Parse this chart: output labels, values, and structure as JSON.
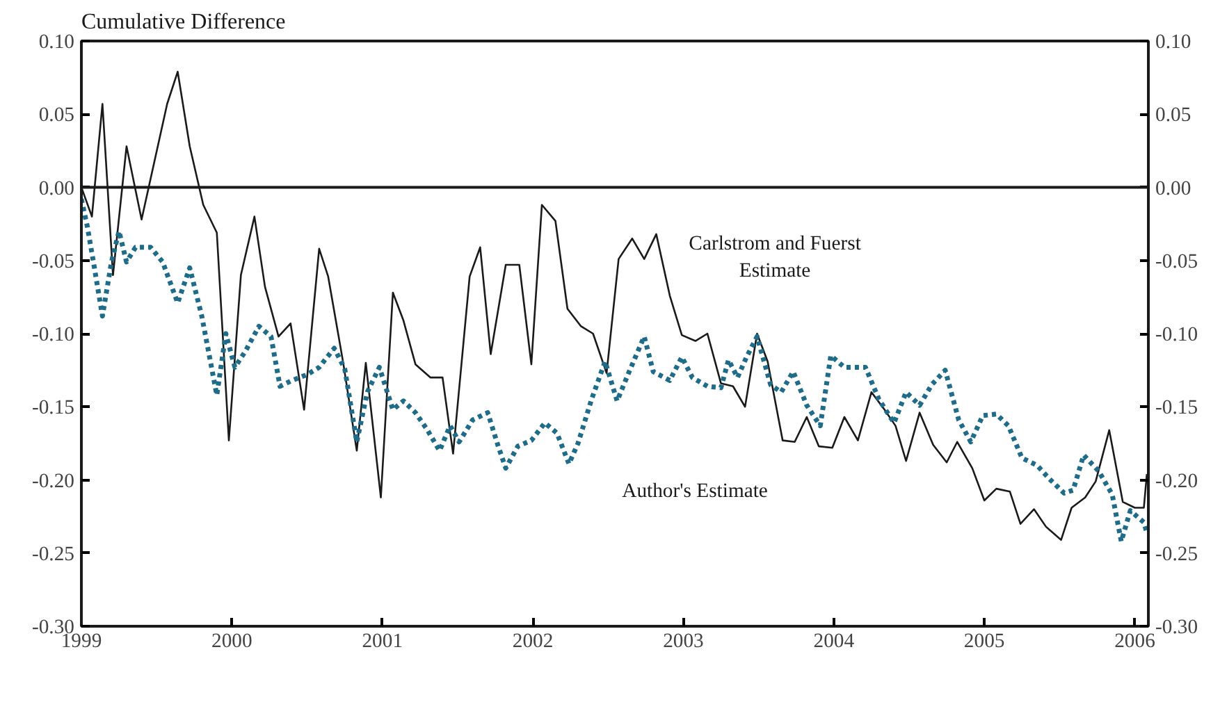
{
  "chart_data": {
    "type": "line",
    "ylabel": "Cumulative Difference",
    "xlim": [
      1999,
      2006.09
    ],
    "xticks": [
      1999,
      2000,
      2001,
      2002,
      2003,
      2004,
      2005,
      2006
    ],
    "ylim": [
      -0.3,
      0.1
    ],
    "yticks": [
      {
        "value": 0.1,
        "label": "0.10"
      },
      {
        "value": 0.05,
        "label": "0.05"
      },
      {
        "value": 0,
        "label": "0.00"
      },
      {
        "value": -0.05,
        "label": "-0.05"
      },
      {
        "value": -0.1,
        "label": "-0.10"
      },
      {
        "value": -0.15,
        "label": "-0.15"
      },
      {
        "value": -0.2,
        "label": "-0.20"
      },
      {
        "value": -0.25,
        "label": "-0.25"
      },
      {
        "value": -0.3,
        "label": "-0.30"
      }
    ],
    "y2lim": [
      -0.3,
      0.1
    ],
    "y2ticks": [
      {
        "value": 0.1,
        "label": "0.10"
      },
      {
        "value": 0.05,
        "label": "0.05"
      },
      {
        "value": 0,
        "label": "0.00"
      },
      {
        "value": -0.05,
        "label": "-0.05"
      },
      {
        "value": -0.1,
        "label": "-0.10"
      },
      {
        "value": -0.15,
        "label": "-0.15"
      },
      {
        "value": -0.2,
        "label": "-0.20"
      },
      {
        "value": -0.25,
        "label": "-0.25"
      },
      {
        "value": -0.3,
        "label": "-0.30"
      }
    ],
    "grid": false,
    "marker": "none",
    "ref_lines": [
      {
        "axis": "y",
        "value": 0,
        "color": "#1a1a1a",
        "line_style": "solid"
      }
    ],
    "annotations": [
      "Carlstrom and Fuerst\nEstimate",
      "Author's Estimate"
    ],
    "series": [
      {
        "color": "#1a1a1a",
        "line_style": "solid",
        "x": [
          1999,
          1999.07,
          1999.14,
          1999.21,
          1999.3,
          1999.4,
          1999.57,
          1999.64,
          1999.72,
          1999.81,
          1999.9,
          1999.98,
          2000.06,
          2000.15,
          2000.22,
          2000.31,
          2000.39,
          2000.48,
          2000.58,
          2000.64,
          2000.74,
          2000.83,
          2000.89,
          2000.99,
          2001.07,
          2001.14,
          2001.22,
          2001.32,
          2001.4,
          2001.47,
          2001.58,
          2001.65,
          2001.72,
          2001.82,
          2001.91,
          2001.99,
          2002.06,
          2002.15,
          2002.23,
          2002.32,
          2002.4,
          2002.49,
          2002.57,
          2002.66,
          2002.74,
          2002.82,
          2002.91,
          2002.99,
          2003.08,
          2003.16,
          2003.25,
          2003.33,
          2003.41,
          2003.49,
          2003.56,
          2003.66,
          2003.74,
          2003.82,
          2003.9,
          2003.99,
          2004.07,
          2004.16,
          2004.25,
          2004.33,
          2004.41,
          2004.48,
          2004.57,
          2004.66,
          2004.75,
          2004.82,
          2004.92,
          2005,
          2005.08,
          2005.17,
          2005.24,
          2005.33,
          2005.41,
          2005.51,
          2005.58,
          2005.67,
          2005.74,
          2005.83,
          2005.92,
          2006,
          2006.06,
          2006.08
        ],
        "values": [
          0,
          -0.02,
          0.057,
          -0.06,
          0.028,
          -0.022,
          0.057,
          0.079,
          0.028,
          -0.012,
          -0.031,
          -0.173,
          -0.06,
          -0.02,
          -0.068,
          -0.102,
          -0.093,
          -0.152,
          -0.042,
          -0.061,
          -0.12,
          -0.18,
          -0.12,
          -0.212,
          -0.072,
          -0.091,
          -0.121,
          -0.13,
          -0.13,
          -0.182,
          -0.061,
          -0.041,
          -0.114,
          -0.053,
          -0.053,
          -0.121,
          -0.012,
          -0.023,
          -0.083,
          -0.095,
          -0.1,
          -0.127,
          -0.049,
          -0.035,
          -0.049,
          -0.032,
          -0.074,
          -0.101,
          -0.105,
          -0.1,
          -0.134,
          -0.136,
          -0.15,
          -0.1,
          -0.119,
          -0.173,
          -0.174,
          -0.157,
          -0.177,
          -0.178,
          -0.157,
          -0.173,
          -0.14,
          -0.151,
          -0.163,
          -0.187,
          -0.154,
          -0.176,
          -0.188,
          -0.174,
          -0.192,
          -0.214,
          -0.206,
          -0.208,
          -0.23,
          -0.22,
          -0.232,
          -0.241,
          -0.219,
          -0.212,
          -0.201,
          -0.166,
          -0.215,
          -0.219,
          -0.219,
          -0.196
        ]
      },
      {
        "color": "#1f6b8a",
        "line_style": "dotted",
        "x": [
          1999,
          1999.04,
          1999.08,
          1999.14,
          1999.2,
          1999.25,
          1999.3,
          1999.36,
          1999.46,
          1999.54,
          1999.64,
          1999.72,
          1999.8,
          1999.9,
          1999.96,
          2000.02,
          2000.09,
          2000.18,
          2000.26,
          2000.32,
          2000.4,
          2000.5,
          2000.58,
          2000.68,
          2000.75,
          2000.83,
          2000.9,
          2000.98,
          2001.07,
          2001.14,
          2001.22,
          2001.3,
          2001.38,
          2001.45,
          2001.51,
          2001.6,
          2001.7,
          2001.77,
          2001.82,
          2001.9,
          2001.99,
          2002.08,
          2002.16,
          2002.24,
          2002.3,
          2002.39,
          2002.48,
          2002.56,
          2002.64,
          2002.74,
          2002.8,
          2002.91,
          2002.99,
          2003.06,
          2003.16,
          2003.25,
          2003.3,
          2003.36,
          2003.42,
          2003.49,
          2003.58,
          2003.65,
          2003.73,
          2003.82,
          2003.91,
          2003.98,
          2004.07,
          2004.21,
          2004.3,
          2004.4,
          2004.48,
          2004.57,
          2004.65,
          2004.74,
          2004.83,
          2004.91,
          2004.99,
          2005.08,
          2005.16,
          2005.25,
          2005.35,
          2005.43,
          2005.53,
          2005.59,
          2005.66,
          2005.76,
          2005.85,
          2005.91,
          2005.97,
          2006.06,
          2006.08
        ],
        "values": [
          -0.008,
          -0.027,
          -0.051,
          -0.088,
          -0.051,
          -0.03,
          -0.051,
          -0.041,
          -0.041,
          -0.051,
          -0.079,
          -0.055,
          -0.088,
          -0.142,
          -0.1,
          -0.123,
          -0.112,
          -0.095,
          -0.102,
          -0.136,
          -0.132,
          -0.128,
          -0.123,
          -0.11,
          -0.124,
          -0.174,
          -0.14,
          -0.123,
          -0.152,
          -0.146,
          -0.154,
          -0.166,
          -0.18,
          -0.163,
          -0.174,
          -0.159,
          -0.154,
          -0.177,
          -0.192,
          -0.177,
          -0.173,
          -0.161,
          -0.168,
          -0.189,
          -0.175,
          -0.145,
          -0.119,
          -0.146,
          -0.126,
          -0.102,
          -0.126,
          -0.132,
          -0.116,
          -0.13,
          -0.136,
          -0.137,
          -0.118,
          -0.13,
          -0.116,
          -0.102,
          -0.135,
          -0.14,
          -0.126,
          -0.149,
          -0.163,
          -0.115,
          -0.123,
          -0.123,
          -0.145,
          -0.161,
          -0.14,
          -0.149,
          -0.135,
          -0.125,
          -0.159,
          -0.174,
          -0.156,
          -0.155,
          -0.163,
          -0.185,
          -0.19,
          -0.199,
          -0.209,
          -0.207,
          -0.183,
          -0.194,
          -0.21,
          -0.242,
          -0.221,
          -0.229,
          -0.236
        ]
      }
    ]
  }
}
